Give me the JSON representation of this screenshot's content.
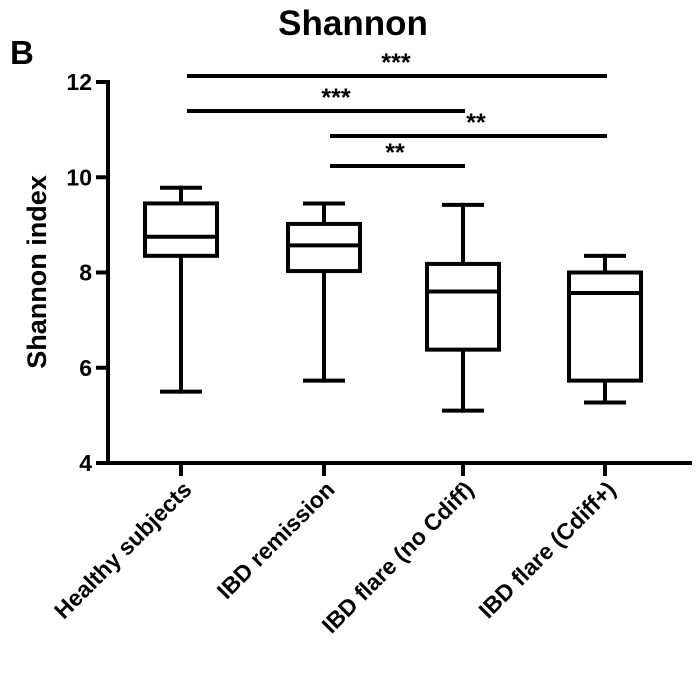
{
  "panel_label": "B",
  "chart_data": {
    "type": "box",
    "title": "Shannon",
    "xlabel": "",
    "ylabel": "Shannon index",
    "ylim": [
      4,
      12
    ],
    "yticks": [
      4,
      6,
      8,
      10,
      12
    ],
    "grid": false,
    "categories": [
      "Healthy subjects",
      "IBD remission",
      "IBD flare (no Cdiff)",
      "IBD flare (Cdiff+)"
    ],
    "boxes": [
      {
        "min": 5.5,
        "q1": 8.35,
        "median": 8.75,
        "q3": 9.45,
        "max": 9.78
      },
      {
        "min": 5.73,
        "q1": 8.03,
        "median": 8.57,
        "q3": 9.02,
        "max": 9.45
      },
      {
        "min": 5.1,
        "q1": 6.38,
        "median": 7.6,
        "q3": 8.18,
        "max": 9.42
      },
      {
        "min": 5.27,
        "q1": 5.73,
        "median": 7.57,
        "q3": 8.0,
        "max": 8.35
      }
    ],
    "significance": [
      {
        "from": 0,
        "to": 3,
        "label": "***"
      },
      {
        "from": 0,
        "to": 2,
        "label": "***"
      },
      {
        "from": 1,
        "to": 3,
        "label": "**"
      },
      {
        "from": 1,
        "to": 2,
        "label": "**"
      }
    ]
  }
}
